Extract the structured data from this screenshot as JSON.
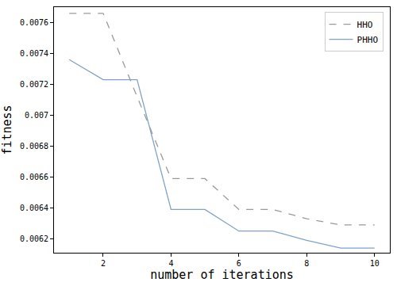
{
  "chart_data": {
    "type": "line",
    "x_label": "number of iterations",
    "y_label": "fitness",
    "x": [
      1,
      2,
      3,
      4,
      5,
      6,
      7,
      8,
      9,
      10
    ],
    "series": [
      {
        "name": "HHO",
        "color": "#9a9a9a",
        "line_style": "dashed",
        "values": [
          0.00766,
          0.00766,
          0.00712,
          0.00659,
          0.00659,
          0.00639,
          0.00639,
          0.00633,
          0.00629,
          0.00629
        ]
      },
      {
        "name": "PHHO",
        "color": "#7fa2c9",
        "line_style": "solid",
        "values": [
          0.00736,
          0.00723,
          0.00723,
          0.00639,
          0.00639,
          0.00625,
          0.00625,
          0.00619,
          0.00614,
          0.00614
        ]
      }
    ],
    "xlim": [
      0.55,
      10.45
    ],
    "xticks": [
      2,
      4,
      6,
      8,
      10
    ],
    "ylim": [
      0.00611,
      0.0077
    ],
    "yticks": [
      0.0062,
      0.0064,
      0.0066,
      0.0068,
      0.007,
      0.0072,
      0.0074,
      0.0076
    ],
    "grid": false,
    "legend": "upper right"
  }
}
